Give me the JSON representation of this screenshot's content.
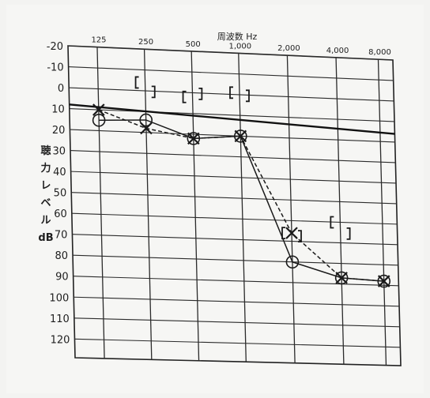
{
  "chart_data": {
    "type": "line",
    "title": "周波数 Hz",
    "ylabel_chars": [
      "聴",
      "力",
      "レ",
      "ベ",
      "ル",
      "dB"
    ],
    "x_categories": [
      "125",
      "250",
      "500",
      "1,000",
      "2,000",
      "4,000",
      "8,000"
    ],
    "y_ticks": [
      "-20",
      "-10",
      "0",
      "10",
      "20",
      "30",
      "40",
      "50",
      "60",
      "70",
      "80",
      "90",
      "100",
      "110",
      "120"
    ],
    "ylim": [
      -20,
      120
    ],
    "y_inverted": true,
    "grid": true,
    "series": [
      {
        "marker": "circle",
        "line": "solid",
        "x": [
          "125",
          "250",
          "500",
          "1,000",
          "2,000",
          "4,000",
          "8,000"
        ],
        "values": [
          15,
          14,
          22,
          20,
          80,
          87,
          88
        ]
      },
      {
        "marker": "cross",
        "line": "dashed",
        "x": [
          "125",
          "250",
          "500",
          "1,000",
          "2,000",
          "4,000",
          "8,000"
        ],
        "values": [
          10,
          18,
          22,
          20,
          66,
          87,
          88
        ]
      },
      {
        "marker": "bracket-left",
        "line": "none",
        "x": [
          "250",
          "500",
          "1,000",
          "2,000",
          "4,000"
        ],
        "values": [
          -4,
          2,
          -1,
          66,
          60
        ]
      },
      {
        "marker": "bracket-right",
        "line": "none",
        "x": [
          "250",
          "500",
          "1,000",
          "2,000",
          "4,000"
        ],
        "values": [
          -1,
          -1,
          -1,
          66,
          64
        ]
      }
    ]
  }
}
